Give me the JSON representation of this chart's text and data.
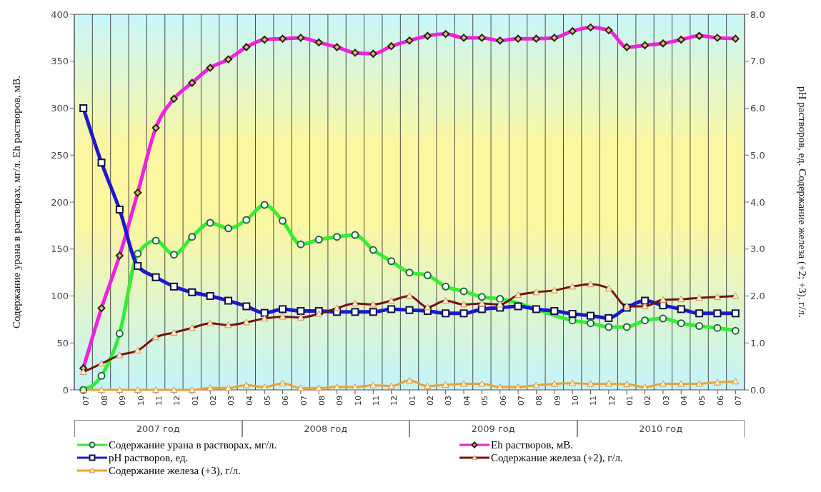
{
  "chart_data": {
    "type": "line",
    "categories": [
      "07",
      "08",
      "09",
      "10",
      "11",
      "12",
      "01",
      "02",
      "03",
      "04",
      "05",
      "06",
      "07",
      "08",
      "09",
      "10",
      "11",
      "12",
      "01",
      "02",
      "03",
      "04",
      "05",
      "06",
      "07",
      "08",
      "09",
      "10",
      "11",
      "12",
      "01",
      "02",
      "03",
      "04",
      "05",
      "06",
      "07"
    ],
    "ylabel": "Содержание урана в растворах, мг/л. Eh растворов, мВ.",
    "y2label": "pH растворов, ед. Содержание железа (+2; +3), г/л.",
    "ylim": [
      0,
      400
    ],
    "yticks": [
      0,
      50,
      100,
      150,
      200,
      250,
      300,
      350,
      400
    ],
    "y2lim": [
      0,
      8
    ],
    "y2ticks": [
      {
        "value": 0,
        "label": "0.0"
      },
      {
        "value": 1,
        "label": "1.0"
      },
      {
        "value": 2,
        "label": "2.0"
      },
      {
        "value": 3,
        "label": "3.0"
      },
      {
        "value": 4,
        "label": "4.0"
      },
      {
        "value": 5,
        "label": "5.0"
      },
      {
        "value": 6,
        "label": "6.0"
      },
      {
        "value": 7,
        "label": "7.0"
      },
      {
        "value": 8,
        "label": "8.0"
      }
    ],
    "grid": true,
    "legend": "bottom",
    "line_style": "solid",
    "annotations": [
      "2007 год",
      "2008 год",
      "2009 год",
      "2010 год"
    ],
    "series": [
      {
        "name": "Содержание урана в растворах, мг/л.",
        "color": "#33ee33",
        "marker": "circle",
        "values": [
          0,
          15,
          60,
          145,
          159,
          144,
          163,
          178,
          172,
          181,
          197,
          180,
          155,
          160,
          163,
          165,
          149,
          137,
          125,
          122,
          110,
          105,
          99,
          97,
          null,
          null,
          null,
          74,
          71,
          67,
          67,
          74,
          76,
          71,
          68,
          66,
          63
        ]
      },
      {
        "name": "Eh растворов, мВ.",
        "color": "#ee22dd",
        "marker": "diamond",
        "values": [
          23,
          87,
          143,
          210,
          279,
          310,
          327,
          343,
          352,
          365,
          373,
          374,
          375,
          370,
          365,
          359,
          358,
          366,
          372,
          377,
          379,
          375,
          375,
          372,
          374,
          374,
          375,
          382,
          386,
          383,
          365,
          367,
          369,
          373,
          377,
          375,
          374
        ]
      },
      {
        "name": "pH растворов, ед.",
        "color": "#1a1acc",
        "marker": "square",
        "axis": "y2",
        "values": [
          6.0,
          4.84,
          3.84,
          2.64,
          2.4,
          2.2,
          2.08,
          2.0,
          1.9,
          1.78,
          1.64,
          1.72,
          1.68,
          1.68,
          1.66,
          1.66,
          1.66,
          1.72,
          1.7,
          1.68,
          1.63,
          1.63,
          1.72,
          1.75,
          1.78,
          1.72,
          1.68,
          1.62,
          1.58,
          1.53,
          1.75,
          1.9,
          1.8,
          1.72,
          1.63,
          1.63,
          1.63
        ]
      },
      {
        "name": "Содержание железа (+2), г/л.",
        "color": "#7a1010",
        "marker": "triangle",
        "axis": "y2",
        "values": [
          0.38,
          0.56,
          0.74,
          0.84,
          1.12,
          1.22,
          1.32,
          1.42,
          1.38,
          1.44,
          1.52,
          1.56,
          1.54,
          1.62,
          1.74,
          1.84,
          1.82,
          1.9,
          2.0,
          1.76,
          1.9,
          1.82,
          1.84,
          1.82,
          2.02,
          2.08,
          2.12,
          2.2,
          2.25,
          2.16,
          1.78,
          1.78,
          1.92,
          1.93,
          1.96,
          1.98,
          2.0
        ]
      },
      {
        "name": "Содержание железа (+3), г/л.",
        "color": "#f0a030",
        "marker": "triangle",
        "axis": "y2",
        "values": [
          0,
          0,
          0,
          0,
          0,
          0,
          0,
          0.04,
          0.04,
          0.1,
          0.06,
          0.14,
          0.04,
          0.04,
          0.06,
          0.06,
          0.1,
          0.08,
          0.2,
          0.08,
          0.11,
          0.13,
          0.13,
          0.06,
          0.06,
          0.1,
          0.13,
          0.14,
          0.13,
          0.13,
          0.12,
          0.06,
          0.13,
          0.13,
          0.13,
          0.16,
          0.18
        ]
      }
    ]
  }
}
